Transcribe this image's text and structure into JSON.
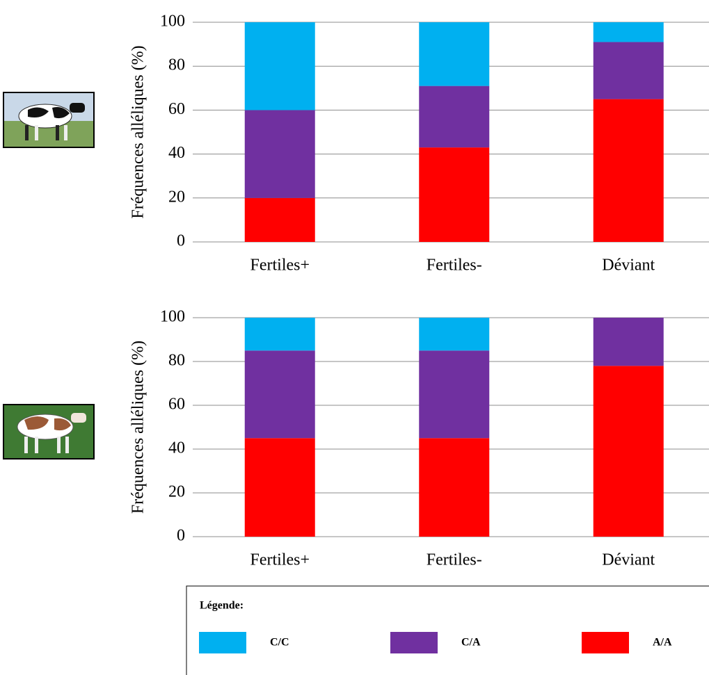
{
  "chart_data": [
    {
      "type": "stacked-bar",
      "ylabel": "Fréquences alléliques (%)",
      "categories": [
        "Fertiles+",
        "Fertiles-",
        "Déviant"
      ],
      "series": [
        {
          "name": "C/C",
          "color": "#00b0f0",
          "values": [
            40,
            29,
            9
          ]
        },
        {
          "name": "C/A",
          "color": "#7030a0",
          "values": [
            40,
            28,
            26
          ]
        },
        {
          "name": "A/A",
          "color": "#ff0000",
          "values": [
            20,
            43,
            65
          ]
        }
      ],
      "ylim": [
        0,
        100
      ],
      "yticks": [
        0,
        20,
        40,
        60,
        80,
        100
      ],
      "grid": true
    },
    {
      "type": "stacked-bar",
      "ylabel": "Fréquences alléliques (%)",
      "categories": [
        "Fertiles+",
        "Fertiles-",
        "Déviant"
      ],
      "series": [
        {
          "name": "C/C",
          "color": "#00b0f0",
          "values": [
            15,
            15,
            0
          ]
        },
        {
          "name": "C/A",
          "color": "#7030a0",
          "values": [
            40,
            40,
            22
          ]
        },
        {
          "name": "A/A",
          "color": "#ff0000",
          "values": [
            45,
            45,
            78
          ]
        }
      ],
      "ylim": [
        0,
        100
      ],
      "yticks": [
        0,
        20,
        40,
        60,
        80,
        100
      ],
      "grid": true
    }
  ],
  "legend_title": "Légende:"
}
